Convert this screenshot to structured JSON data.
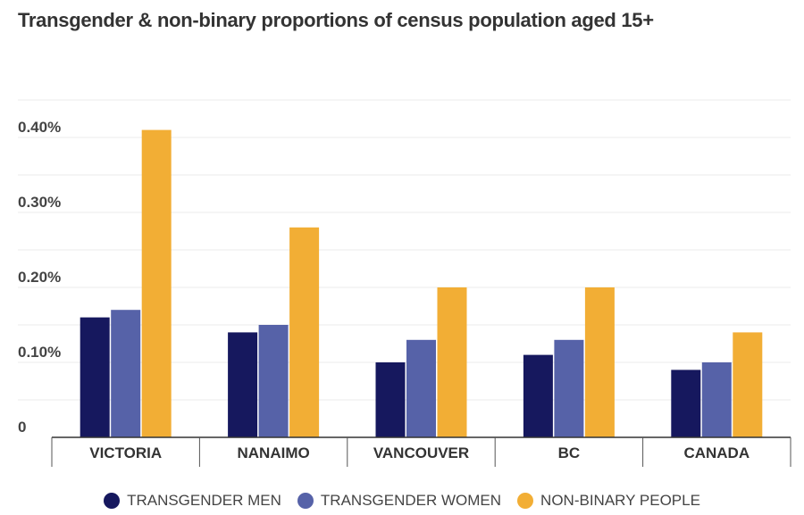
{
  "chart_data": {
    "type": "bar",
    "title": "Transgender & non-binary proportions of census population aged 15+",
    "categories": [
      "VICTORIA",
      "NANAIMO",
      "VANCOUVER",
      "BC",
      "CANADA"
    ],
    "series": [
      {
        "name": "TRANSGENDER MEN",
        "color": "#16185e",
        "values": [
          0.16,
          0.14,
          0.1,
          0.11,
          0.09
        ]
      },
      {
        "name": "TRANSGENDER WOMEN",
        "color": "#5662a8",
        "values": [
          0.17,
          0.15,
          0.13,
          0.13,
          0.1
        ]
      },
      {
        "name": "NON-BINARY PEOPLE",
        "color": "#f2ae35",
        "values": [
          0.41,
          0.28,
          0.2,
          0.2,
          0.14
        ]
      }
    ],
    "yticks": [
      {
        "value": 0,
        "label": "0"
      },
      {
        "value": 0.1,
        "label": "0.10%"
      },
      {
        "value": 0.2,
        "label": "0.20%"
      },
      {
        "value": 0.3,
        "label": "0.30%"
      },
      {
        "value": 0.4,
        "label": "0.40%"
      }
    ],
    "ylim": [
      0,
      0.45
    ],
    "grid": true,
    "legend": "bottom"
  }
}
